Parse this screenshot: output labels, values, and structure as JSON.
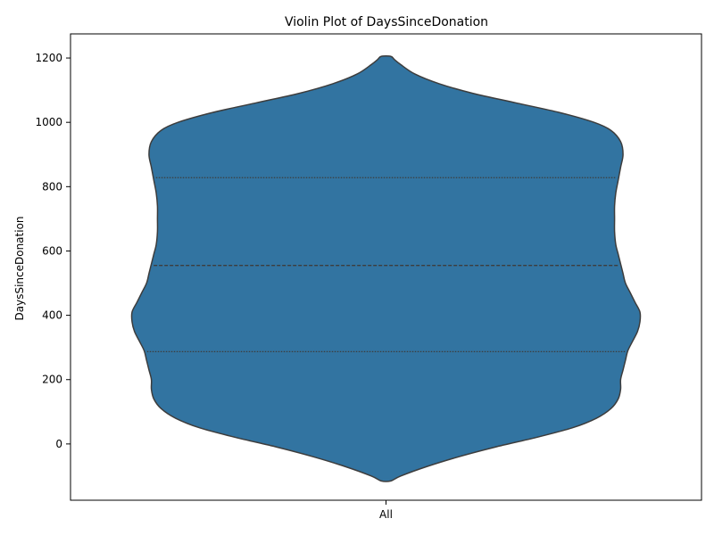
{
  "chart_data": {
    "type": "violin",
    "title": "Violin Plot of DaysSinceDonation",
    "xlabel": "",
    "ylabel": "DaysSinceDonation",
    "categories": [
      "All"
    ],
    "ylim": [
      -175,
      1275
    ],
    "yticks": [
      0,
      200,
      400,
      600,
      800,
      1000,
      1200
    ],
    "grid": false,
    "violin_color": "#3274a1",
    "edge_color": "#3d3d3d",
    "quartiles": [
      287,
      555,
      828
    ],
    "density_extent": [
      -115,
      1205
    ],
    "density_profile": [
      {
        "y": -115,
        "w": 0.02
      },
      {
        "y": -100,
        "w": 0.06
      },
      {
        "y": -70,
        "w": 0.17
      },
      {
        "y": -40,
        "w": 0.3
      },
      {
        "y": -10,
        "w": 0.45
      },
      {
        "y": 20,
        "w": 0.62
      },
      {
        "y": 50,
        "w": 0.77
      },
      {
        "y": 80,
        "w": 0.87
      },
      {
        "y": 110,
        "w": 0.93
      },
      {
        "y": 140,
        "w": 0.96
      },
      {
        "y": 170,
        "w": 0.97
      },
      {
        "y": 200,
        "w": 0.97
      },
      {
        "y": 230,
        "w": 0.98
      },
      {
        "y": 260,
        "w": 0.99
      },
      {
        "y": 290,
        "w": 1.0
      },
      {
        "y": 320,
        "w": 1.02
      },
      {
        "y": 350,
        "w": 1.04
      },
      {
        "y": 380,
        "w": 1.05
      },
      {
        "y": 410,
        "w": 1.05
      },
      {
        "y": 440,
        "w": 1.03
      },
      {
        "y": 470,
        "w": 1.01
      },
      {
        "y": 500,
        "w": 0.99
      },
      {
        "y": 530,
        "w": 0.98
      },
      {
        "y": 560,
        "w": 0.97
      },
      {
        "y": 590,
        "w": 0.96
      },
      {
        "y": 620,
        "w": 0.95
      },
      {
        "y": 660,
        "w": 0.945
      },
      {
        "y": 700,
        "w": 0.945
      },
      {
        "y": 740,
        "w": 0.945
      },
      {
        "y": 780,
        "w": 0.95
      },
      {
        "y": 820,
        "w": 0.96
      },
      {
        "y": 860,
        "w": 0.97
      },
      {
        "y": 900,
        "w": 0.98
      },
      {
        "y": 940,
        "w": 0.97
      },
      {
        "y": 975,
        "w": 0.93
      },
      {
        "y": 1000,
        "w": 0.86
      },
      {
        "y": 1030,
        "w": 0.72
      },
      {
        "y": 1060,
        "w": 0.54
      },
      {
        "y": 1090,
        "w": 0.36
      },
      {
        "y": 1120,
        "w": 0.22
      },
      {
        "y": 1150,
        "w": 0.12
      },
      {
        "y": 1180,
        "w": 0.06
      },
      {
        "y": 1195,
        "w": 0.035
      },
      {
        "y": 1205,
        "w": 0.02
      }
    ]
  }
}
